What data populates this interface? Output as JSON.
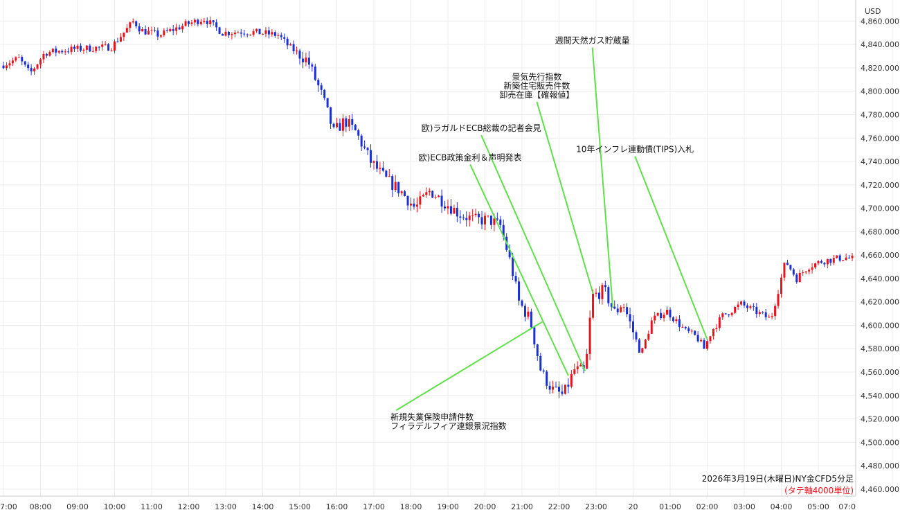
{
  "chart_data": {
    "type": "candlestick",
    "currency_label": "USD",
    "caption": "2026年3月19日(木曜日)NY金CFD5分足",
    "caption_note": "(タテ軸4000単位)",
    "y_range": [
      4454,
      4878
    ],
    "y_ticks": [
      4860,
      4840,
      4820,
      4800,
      4780,
      4760,
      4740,
      4720,
      4700,
      4680,
      4660,
      4640,
      4620,
      4600,
      4580,
      4560,
      4540,
      4520,
      4500,
      4480,
      4460
    ],
    "y_tick_labels": [
      "4,860.000",
      "4,840.000",
      "4,820.000",
      "4,800.000",
      "4,780.000",
      "4,760.000",
      "4,740.000",
      "4,720.000",
      "4,700.000",
      "4,680.000",
      "4,660.000",
      "4,640.000",
      "4,620.000",
      "4,600.000",
      "4,580.000",
      "4,560.000",
      "4,540.000",
      "4,520.000",
      "4,500.000",
      "4,480.000",
      "4,460.000"
    ],
    "x_ticks": [
      "7:00",
      "08:00",
      "09:00",
      "10:00",
      "11:00",
      "12:00",
      "13:00",
      "14:00",
      "15:00",
      "16:00",
      "17:00",
      "18:00",
      "19:00",
      "20:00",
      "21:00",
      "22:00",
      "23:00",
      "20",
      "01:00",
      "02:00",
      "03:00",
      "04:00",
      "05:00",
      "07:0"
    ],
    "x_tick_hours": [
      7,
      8,
      9,
      10,
      11,
      12,
      13,
      14,
      15,
      16,
      17,
      18,
      19,
      20,
      21,
      22,
      23,
      24,
      25,
      26,
      27,
      28,
      29,
      31
    ],
    "series_anchors": {
      "hours": [
        7.0,
        7.5,
        7.8,
        8.2,
        9.0,
        10.0,
        10.6,
        10.8,
        11.3,
        12.0,
        12.5,
        13.0,
        13.5,
        14.0,
        14.5,
        14.8,
        15.3,
        15.7,
        16.0,
        16.3,
        16.6,
        17.0,
        17.4,
        17.8,
        18.2,
        18.6,
        19.0,
        19.4,
        19.8,
        20.2,
        20.5,
        20.8,
        21.0,
        21.3,
        21.6,
        21.9,
        22.2,
        22.5,
        22.8,
        22.9,
        23.0,
        23.3,
        23.6,
        23.8,
        24.3,
        24.6,
        25.0,
        25.5,
        25.8,
        26.0,
        26.2,
        26.5,
        27.0,
        27.5,
        27.8,
        28.0,
        28.2,
        28.5,
        28.8,
        29.2,
        29.8,
        30.3
      ],
      "prices": [
        4822,
        4828,
        4815,
        4833,
        4836,
        4838,
        4860,
        4852,
        4848,
        4857,
        4862,
        4850,
        4851,
        4850,
        4848,
        4838,
        4826,
        4795,
        4765,
        4775,
        4765,
        4740,
        4725,
        4715,
        4700,
        4715,
        4705,
        4695,
        4690,
        4690,
        4685,
        4650,
        4620,
        4605,
        4560,
        4545,
        4540,
        4562,
        4560,
        4600,
        4625,
        4630,
        4610,
        4620,
        4575,
        4605,
        4612,
        4595,
        4590,
        4580,
        4595,
        4608,
        4618,
        4610,
        4605,
        4630,
        4655,
        4640,
        4650,
        4655,
        4658,
        4655
      ]
    },
    "annotations": [
      {
        "lines": [
          "新規失業保険申請件数",
          "フィラデルフィア連銀景況指数"
        ],
        "event_hour": 21.55,
        "event_price": 4603,
        "label_hour": 17.6,
        "label_price": 4519
      },
      {
        "lines": [
          "欧)ECB政策金利＆声明発表"
        ],
        "event_hour": 22.25,
        "event_price": 4557,
        "label_hour": 19.6,
        "label_price": 4741
      },
      {
        "lines": [
          "欧)ラガルドECB総裁の記者会見"
        ],
        "event_hour": 22.7,
        "event_price": 4561,
        "label_hour": 19.9,
        "label_price": 4766
      },
      {
        "lines": [
          "景気先行指数",
          "新築住宅販売件数",
          "卸売在庫【確報値】"
        ],
        "event_hour": 22.92,
        "event_price": 4627,
        "label_hour": 21.4,
        "label_price": 4810
      },
      {
        "lines": [
          "週間天然ガス貯蔵量"
        ],
        "event_hour": 23.45,
        "event_price": 4615,
        "label_hour": 22.9,
        "label_price": 4841
      },
      {
        "lines": [
          "10年インフレ連動債(TIPS)入札"
        ],
        "event_hour": 26.0,
        "event_price": 4588,
        "label_hour": 24.05,
        "label_price": 4748
      }
    ],
    "colors": {
      "up": "#e8141b",
      "down": "#1a2fd6",
      "annotation_line": "#5fe04a",
      "caption_note": "#e8141b"
    },
    "grid": true,
    "legend": "none",
    "xlabel": "",
    "ylabel": ""
  }
}
